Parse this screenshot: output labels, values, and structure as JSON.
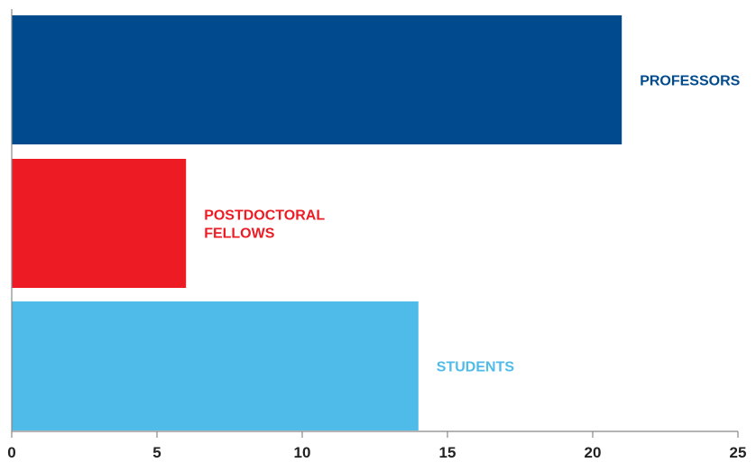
{
  "chart_data": {
    "type": "bar",
    "orientation": "horizontal",
    "categories": [
      "PROFESSORS",
      "POSTDOCTORAL FELLOWS",
      "STUDENTS"
    ],
    "label_lines": [
      [
        "PROFESSORS"
      ],
      [
        "POSTDOCTORAL",
        "FELLOWS"
      ],
      [
        "STUDENTS"
      ]
    ],
    "values": [
      21,
      6,
      14
    ],
    "colors": [
      "#004a8d",
      "#ed1c24",
      "#4fbbe9"
    ],
    "xlim": [
      0,
      25
    ],
    "xticks": [
      0,
      5,
      10,
      15,
      20,
      25
    ],
    "grid": false,
    "title": "",
    "xlabel": "",
    "ylabel": ""
  }
}
